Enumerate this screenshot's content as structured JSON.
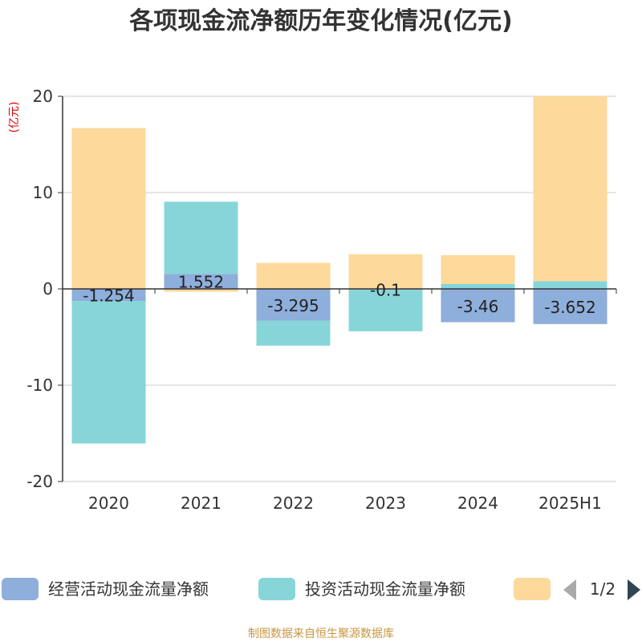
{
  "chart_data": {
    "type": "bar",
    "stacked": true,
    "title": "各项现金流净额历年变化情况(亿元)",
    "ylabel": "(亿元)",
    "xlabel": "",
    "categories": [
      "2020",
      "2021",
      "2022",
      "2023",
      "2024",
      "2025H1"
    ],
    "ylim": [
      -20,
      20
    ],
    "yticks": [
      20,
      10,
      0,
      -10,
      -20
    ],
    "grid": true,
    "series": [
      {
        "name": "经营活动现金流量净额",
        "color": "#8eaedb",
        "values": [
          -1.254,
          1.552,
          -3.295,
          -0.1,
          -3.46,
          -3.652
        ],
        "labels": [
          "-1.254",
          "1.552",
          "-3.295",
          "-0.1",
          "-3.46",
          "-3.652"
        ]
      },
      {
        "name": "投资活动现金流量净额",
        "color": "#87d5d8",
        "values": [
          -14.8,
          7.5,
          -2.6,
          -4.3,
          0.5,
          0.8
        ]
      },
      {
        "name": "",
        "color": "#fdd99b",
        "values": [
          16.7,
          -0.3,
          2.7,
          3.6,
          3.0,
          19.2
        ]
      }
    ],
    "legend": {
      "position": "bottom",
      "page": "1/2"
    },
    "source": "制图数据来自恒生聚源数据库"
  }
}
